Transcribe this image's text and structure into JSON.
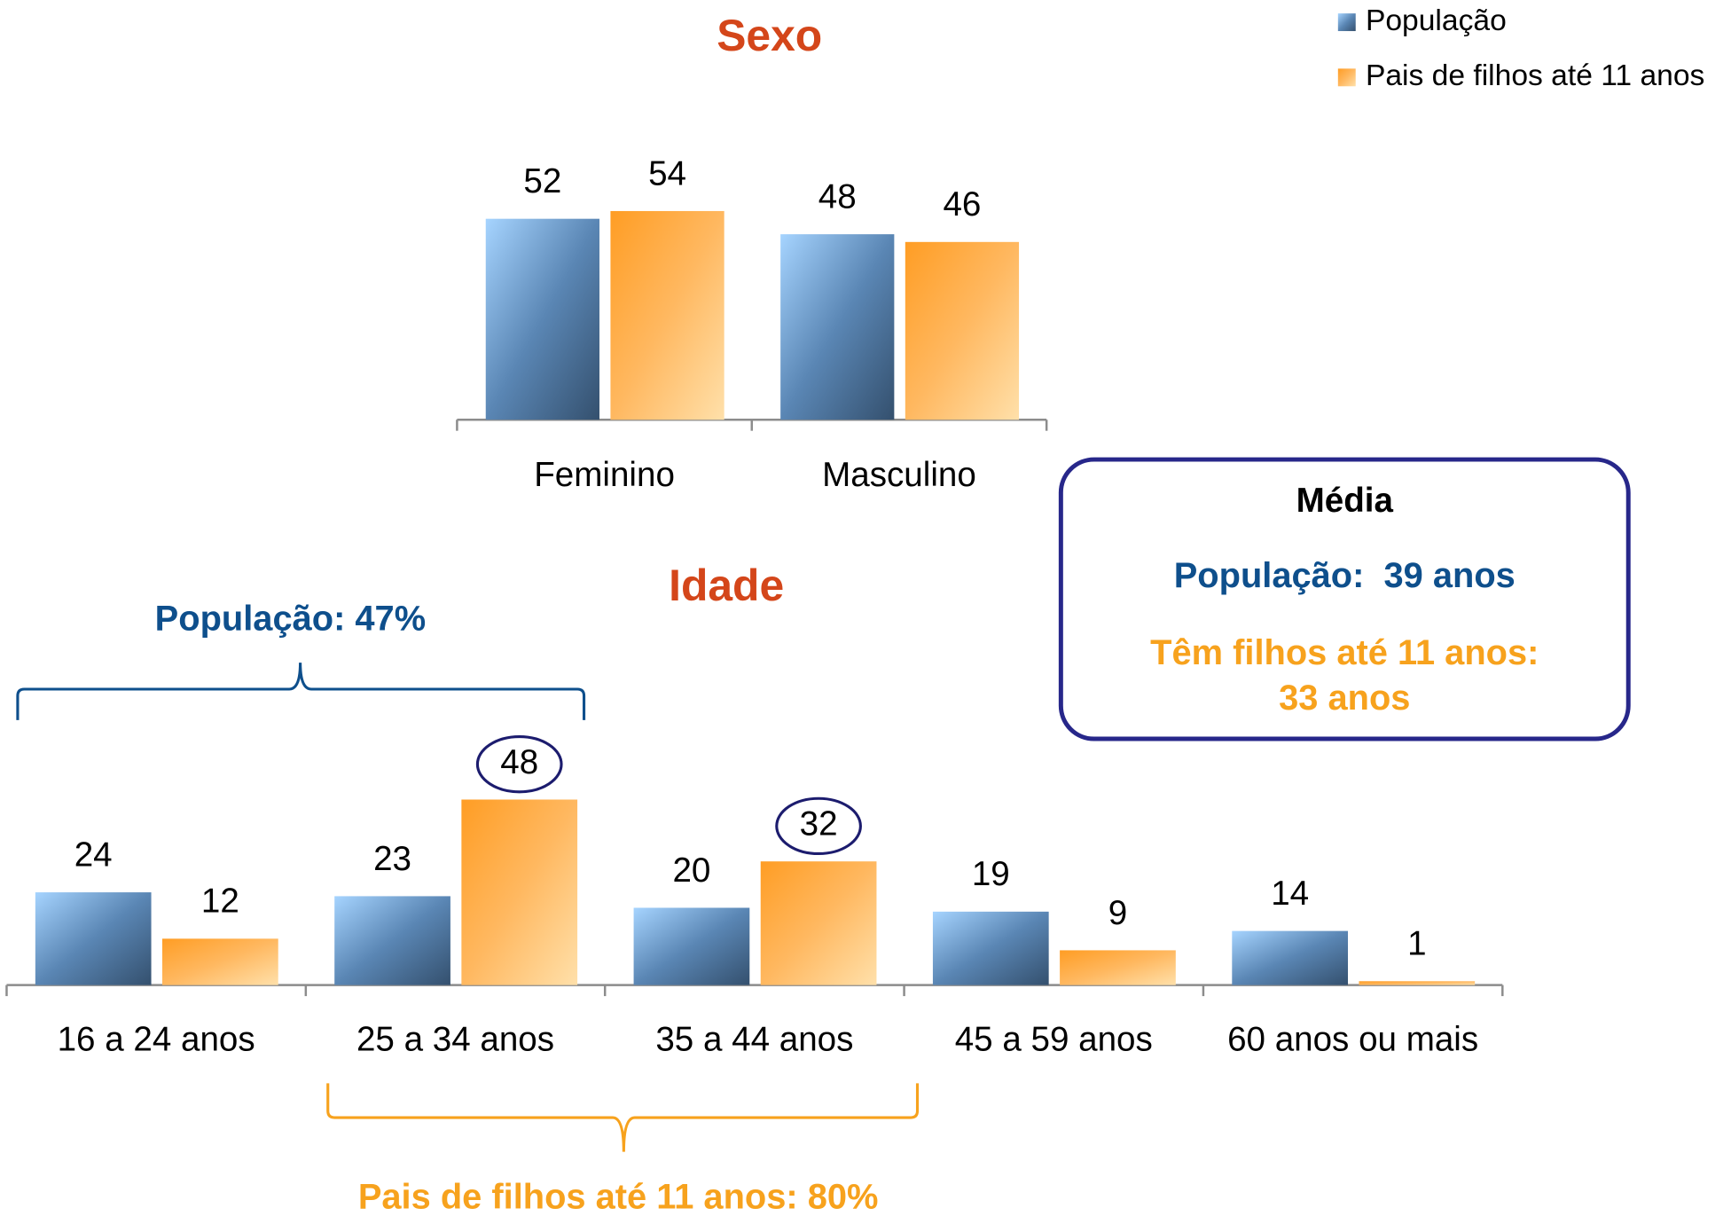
{
  "chart_data": [
    {
      "type": "bar",
      "title": "Sexo",
      "categories": [
        "Feminino",
        "Masculino"
      ],
      "series": [
        {
          "name": "População",
          "color": "#5a86b4",
          "values": [
            52,
            48
          ]
        },
        {
          "name": "Pais de filhos até 11 anos",
          "color": "#ff9d24",
          "values": [
            54,
            46
          ]
        }
      ]
    },
    {
      "type": "bar",
      "title": "Idade",
      "categories": [
        "16 a 24 anos",
        "25 a 34 anos",
        "35 a 44 anos",
        "45 a 59 anos",
        "60 anos ou mais"
      ],
      "series": [
        {
          "color": "#5a86b4",
          "values": [
            24,
            23,
            20,
            19,
            14
          ]
        },
        {
          "color": "#ff9d24",
          "values": [
            12,
            48,
            32,
            9,
            1
          ]
        }
      ]
    }
  ],
  "annotations": {
    "media_box": {
      "title": "Média",
      "population": "População:  39 anos",
      "parents": [
        "Têm filhos até 11 anos:",
        "33 anos"
      ]
    },
    "brackets": [
      {
        "label": "População: 47%"
      },
      {
        "label": "Pais de filhos até 11 anos: 80%"
      }
    ]
  }
}
